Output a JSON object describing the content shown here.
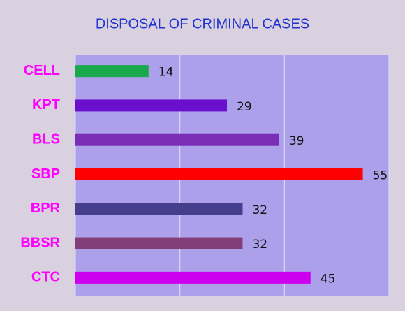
{
  "chart_data": {
    "type": "hbar",
    "title": "DISPOSAL OF CRIMINAL CASES",
    "categories": [
      "CELL",
      "KPT",
      "BLS",
      "SBP",
      "BPR",
      "BBSR",
      "CTC"
    ],
    "values": [
      14,
      29,
      39,
      55,
      32,
      32,
      45
    ],
    "colors": [
      "#1aa84c",
      "#6a0fcc",
      "#7a2eb8",
      "#ff0000",
      "#443e8c",
      "#833e7a",
      "#cc00ee"
    ],
    "xlim": [
      0,
      60
    ],
    "xticks": [
      0,
      20,
      40,
      60
    ],
    "grid": true
  }
}
